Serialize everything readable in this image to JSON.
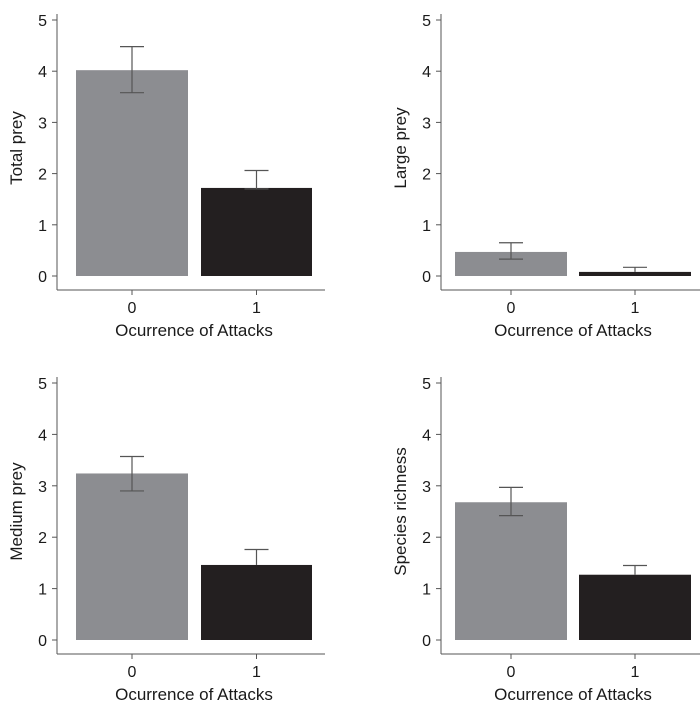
{
  "colors": {
    "bar_0": "#8c8d91",
    "bar_1": "#231f20",
    "axis": "#555555",
    "text": "#1a1a1a"
  },
  "chart_data": [
    {
      "type": "bar",
      "categories": [
        "0",
        "1"
      ],
      "values": [
        4.02,
        1.72
      ],
      "error_upper": [
        4.48,
        2.06
      ],
      "error_lower": [
        3.58,
        1.7
      ],
      "title": "",
      "xlabel": "Ocurrence of Attacks",
      "ylabel": "Total prey",
      "ylim": [
        0,
        5
      ],
      "yticks": [
        "0",
        "1",
        "2",
        "3",
        "4",
        "5"
      ],
      "grid": false
    },
    {
      "type": "bar",
      "categories": [
        "0",
        "1"
      ],
      "values": [
        0.47,
        0.08
      ],
      "error_upper": [
        0.65,
        0.17
      ],
      "error_lower": [
        0.33,
        0.08
      ],
      "title": "",
      "xlabel": "Ocurrence of Attacks",
      "ylabel": "Large prey",
      "ylim": [
        0,
        5
      ],
      "yticks": [
        "0",
        "1",
        "2",
        "3",
        "4",
        "5"
      ],
      "grid": false
    },
    {
      "type": "bar",
      "categories": [
        "0",
        "1"
      ],
      "values": [
        3.24,
        1.46
      ],
      "error_upper": [
        3.57,
        1.76
      ],
      "error_lower": [
        2.9,
        1.46
      ],
      "title": "",
      "xlabel": "Ocurrence of Attacks",
      "ylabel": "Medium prey",
      "ylim": [
        0,
        5
      ],
      "yticks": [
        "0",
        "1",
        "2",
        "3",
        "4",
        "5"
      ],
      "grid": false
    },
    {
      "type": "bar",
      "categories": [
        "0",
        "1"
      ],
      "values": [
        2.68,
        1.27
      ],
      "error_upper": [
        2.97,
        1.45
      ],
      "error_lower": [
        2.42,
        1.27
      ],
      "title": "",
      "xlabel": "Ocurrence of Attacks",
      "ylabel": "Species richness",
      "ylim": [
        0,
        5
      ],
      "yticks": [
        "0",
        "1",
        "2",
        "3",
        "4",
        "5"
      ],
      "grid": false
    }
  ]
}
